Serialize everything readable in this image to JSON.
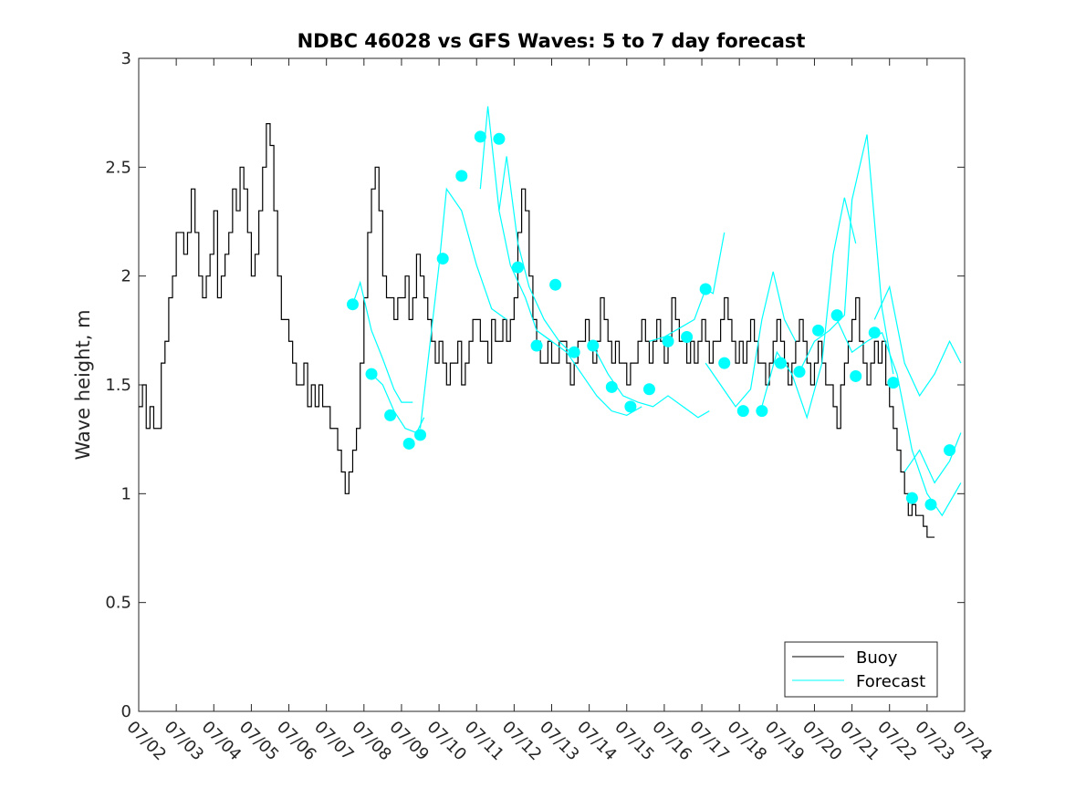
{
  "chart_data": {
    "type": "line",
    "title": "NDBC 46028 vs GFS Waves: 5 to 7 day forecast",
    "xlabel": "",
    "ylabel": "Wave height, m",
    "xlim": [
      "07/02",
      "07/24"
    ],
    "ylim": [
      0,
      3
    ],
    "x_ticks": [
      "07/02",
      "07/03",
      "07/04",
      "07/05",
      "07/06",
      "07/07",
      "07/08",
      "07/09",
      "07/10",
      "07/11",
      "07/12",
      "07/13",
      "07/14",
      "07/15",
      "07/16",
      "07/17",
      "07/18",
      "07/19",
      "07/20",
      "07/21",
      "07/22",
      "07/23",
      "07/24"
    ],
    "y_ticks": [
      0,
      0.5,
      1,
      1.5,
      2,
      2.5,
      3
    ],
    "y_tick_labels": [
      "0",
      "0.5",
      "1",
      "1.5",
      "2",
      "2.5",
      "3"
    ],
    "grid": false,
    "legend": {
      "position": "bottom-right",
      "entries": [
        "Buoy",
        "Forecast"
      ]
    },
    "colors": {
      "buoy": "#000000",
      "forecast": "#00FFFF",
      "axis": "#262626"
    },
    "series": [
      {
        "name": "Buoy",
        "x_days_since_0702": [
          0,
          0.1,
          0.2,
          0.3,
          0.4,
          0.5,
          0.6,
          0.7,
          0.8,
          0.9,
          1.0,
          1.1,
          1.2,
          1.3,
          1.4,
          1.5,
          1.6,
          1.7,
          1.8,
          1.9,
          2.0,
          2.1,
          2.2,
          2.3,
          2.4,
          2.5,
          2.6,
          2.7,
          2.8,
          2.9,
          3.0,
          3.1,
          3.2,
          3.3,
          3.4,
          3.5,
          3.6,
          3.7,
          3.8,
          3.9,
          4.0,
          4.1,
          4.2,
          4.3,
          4.4,
          4.5,
          4.6,
          4.7,
          4.8,
          4.9,
          5.0,
          5.1,
          5.2,
          5.3,
          5.4,
          5.5,
          5.6,
          5.7,
          5.8,
          5.9,
          6.0,
          6.1,
          6.2,
          6.3,
          6.4,
          6.5,
          6.6,
          6.7,
          6.8,
          6.9,
          7.0,
          7.1,
          7.2,
          7.3,
          7.4,
          7.5,
          7.6,
          7.7,
          7.8,
          7.9,
          8.0,
          8.1,
          8.2,
          8.3,
          8.4,
          8.5,
          8.6,
          8.7,
          8.8,
          8.9,
          9.0,
          9.1,
          9.2,
          9.3,
          9.4,
          9.5,
          9.6,
          9.7,
          9.8,
          9.9,
          10.0,
          10.1,
          10.2,
          10.3,
          10.4,
          10.5,
          10.6,
          10.7,
          10.8,
          10.9,
          11.0,
          11.1,
          11.2,
          11.3,
          11.4,
          11.5,
          11.6,
          11.7,
          11.8,
          11.9,
          12.0,
          12.1,
          12.2,
          12.3,
          12.4,
          12.5,
          12.6,
          12.7,
          12.8,
          12.9,
          13.0,
          13.1,
          13.2,
          13.3,
          13.4,
          13.5,
          13.6,
          13.7,
          13.8,
          13.9,
          14.0,
          14.1,
          14.2,
          14.3,
          14.4,
          14.5,
          14.6,
          14.7,
          14.8,
          14.9,
          15.0,
          15.1,
          15.2,
          15.3,
          15.4,
          15.5,
          15.6,
          15.7,
          15.8,
          15.9,
          16.0,
          16.1,
          16.2,
          16.3,
          16.4,
          16.5,
          16.6,
          16.7,
          16.8,
          16.9,
          17.0,
          17.1,
          17.2,
          17.3,
          17.4,
          17.5,
          17.6,
          17.7,
          17.8,
          17.9,
          18.0,
          18.1,
          18.2,
          18.3,
          18.4,
          18.5,
          18.6,
          18.7,
          18.8,
          18.9,
          19.0,
          19.1,
          19.2,
          19.3,
          19.4,
          19.5,
          19.6,
          19.7,
          19.8,
          19.9,
          20.0,
          20.1,
          20.2,
          20.3,
          20.4,
          20.5,
          20.6,
          20.7,
          20.8,
          20.9,
          21.0,
          21.1,
          21.2,
          21.3,
          21.4,
          21.5,
          21.6,
          21.7,
          21.8,
          21.9
        ],
        "values": [
          1.4,
          1.5,
          1.3,
          1.4,
          1.3,
          1.3,
          1.6,
          1.7,
          1.9,
          2.0,
          2.2,
          2.2,
          2.1,
          2.2,
          2.4,
          2.2,
          2.0,
          1.9,
          2.0,
          2.1,
          2.3,
          1.9,
          2.0,
          2.1,
          2.2,
          2.4,
          2.3,
          2.5,
          2.4,
          2.2,
          2.0,
          2.1,
          2.3,
          2.5,
          2.7,
          2.6,
          2.3,
          2.0,
          1.8,
          1.8,
          1.7,
          1.6,
          1.5,
          1.5,
          1.6,
          1.4,
          1.5,
          1.4,
          1.5,
          1.4,
          1.4,
          1.3,
          1.3,
          1.2,
          1.1,
          1.0,
          1.1,
          1.2,
          1.3,
          1.6,
          1.9,
          2.2,
          2.4,
          2.5,
          2.3,
          2.0,
          1.9,
          1.9,
          1.8,
          1.9,
          1.9,
          2.0,
          1.8,
          1.9,
          2.1,
          2.0,
          1.9,
          1.8,
          1.7,
          1.6,
          1.7,
          1.6,
          1.5,
          1.6,
          1.6,
          1.7,
          1.5,
          1.6,
          1.7,
          1.8,
          1.8,
          1.7,
          1.7,
          1.6,
          1.8,
          1.7,
          1.7,
          1.8,
          1.7,
          1.8,
          1.9,
          2.2,
          2.4,
          2.3,
          2.0,
          1.8,
          1.7,
          1.6,
          1.6,
          1.7,
          1.6,
          1.6,
          1.7,
          1.7,
          1.6,
          1.5,
          1.6,
          1.7,
          1.7,
          1.8,
          1.7,
          1.6,
          1.7,
          1.9,
          1.8,
          1.7,
          1.6,
          1.7,
          1.6,
          1.6,
          1.5,
          1.6,
          1.6,
          1.7,
          1.8,
          1.7,
          1.6,
          1.7,
          1.8,
          1.7,
          1.6,
          1.7,
          1.9,
          1.8,
          1.7,
          1.7,
          1.6,
          1.7,
          1.6,
          1.7,
          1.8,
          1.7,
          1.6,
          1.7,
          1.7,
          1.8,
          1.9,
          1.8,
          1.7,
          1.6,
          1.7,
          1.6,
          1.7,
          1.8,
          1.7,
          1.6,
          1.6,
          1.5,
          1.6,
          1.7,
          1.8,
          1.7,
          1.6,
          1.5,
          1.6,
          1.7,
          1.8,
          1.7,
          1.6,
          1.5,
          1.6,
          1.7,
          1.6,
          1.5,
          1.5,
          1.4,
          1.3,
          1.5,
          1.6,
          1.7,
          1.8,
          1.9,
          1.7,
          1.6,
          1.5,
          1.6,
          1.7,
          1.6,
          1.7,
          1.5,
          1.4,
          1.3,
          1.2,
          1.1,
          1.0,
          0.9,
          0.95,
          0.9,
          0.9,
          0.85,
          0.8,
          0.8
        ]
      },
      {
        "name": "Forecast",
        "marker_points": {
          "x_days_since_0702": [
            5.7,
            6.2,
            6.7,
            7.2,
            7.5,
            8.1,
            8.6,
            9.1,
            9.6,
            10.1,
            10.6,
            11.1,
            11.6,
            12.1,
            12.6,
            13.1,
            13.6,
            14.1,
            14.6,
            15.1,
            15.6,
            16.1,
            16.6,
            17.1,
            17.6,
            18.1,
            18.6,
            19.1,
            19.6,
            20.1,
            20.6,
            21.1,
            21.6
          ],
          "values": [
            1.87,
            1.55,
            1.36,
            1.23,
            1.27,
            2.08,
            2.46,
            2.64,
            2.63,
            2.04,
            1.68,
            1.96,
            1.65,
            1.68,
            1.49,
            1.4,
            1.48,
            1.7,
            1.72,
            1.94,
            1.6,
            1.38,
            1.38,
            1.6,
            1.56,
            1.75,
            1.82,
            1.54,
            1.74,
            1.51,
            0.98,
            0.95,
            1.2
          ]
        },
        "lines": [
          {
            "x_days_since_0702": [
              5.7,
              5.9,
              6.2,
              6.5,
              6.8,
              7.0,
              7.3
            ],
            "values": [
              1.87,
              1.97,
              1.75,
              1.62,
              1.48,
              1.42,
              1.42
            ]
          },
          {
            "x_days_since_0702": [
              6.2,
              6.5,
              6.8,
              7.1,
              7.4,
              7.6
            ],
            "values": [
              1.55,
              1.5,
              1.38,
              1.3,
              1.28,
              1.35
            ]
          },
          {
            "x_days_since_0702": [
              7.5,
              8.0,
              8.2,
              8.6,
              9.0,
              9.4,
              9.8
            ],
            "values": [
              1.3,
              2.05,
              2.4,
              2.3,
              2.05,
              1.85,
              1.8
            ]
          },
          {
            "x_days_since_0702": [
              9.1,
              9.3,
              9.6,
              9.9,
              10.3,
              10.6,
              11.0
            ],
            "values": [
              2.4,
              2.78,
              2.3,
              2.05,
              1.9,
              1.75,
              1.7
            ]
          },
          {
            "x_days_since_0702": [
              9.6,
              9.8,
              10.1,
              10.4,
              10.8,
              11.2,
              11.5
            ],
            "values": [
              2.3,
              2.55,
              2.15,
              1.95,
              1.8,
              1.7,
              1.65
            ]
          },
          {
            "x_days_since_0702": [
              10.6,
              11.0,
              11.4,
              11.8,
              12.2,
              12.6,
              13.0,
              13.4
            ],
            "values": [
              1.75,
              1.7,
              1.65,
              1.55,
              1.45,
              1.38,
              1.36,
              1.4
            ]
          },
          {
            "x_days_since_0702": [
              12.1,
              12.5,
              12.9,
              13.3,
              13.7,
              14.1,
              14.5,
              14.9,
              15.2
            ],
            "values": [
              1.68,
              1.55,
              1.45,
              1.42,
              1.4,
              1.45,
              1.4,
              1.35,
              1.38
            ]
          },
          {
            "x_days_since_0702": [
              13.6,
              14.0,
              14.4,
              14.8,
              15.1,
              15.3,
              15.6
            ],
            "values": [
              1.7,
              1.72,
              1.76,
              1.8,
              1.94,
              1.92,
              2.2
            ]
          },
          {
            "x_days_since_0702": [
              15.1,
              15.5,
              15.9,
              16.3,
              16.6,
              16.9,
              17.2,
              17.5
            ],
            "values": [
              1.6,
              1.5,
              1.4,
              1.48,
              1.8,
              2.02,
              1.8,
              1.7
            ]
          },
          {
            "x_days_since_0702": [
              16.6,
              17.0,
              17.4,
              17.8,
              18.2,
              18.5,
              18.8,
              19.1
            ],
            "values": [
              1.4,
              1.65,
              1.55,
              1.35,
              1.6,
              2.1,
              2.36,
              2.15
            ]
          },
          {
            "x_days_since_0702": [
              17.6,
              18.0,
              18.4,
              18.8,
              19.0,
              19.4,
              19.8,
              20.1
            ],
            "values": [
              1.56,
              1.7,
              1.75,
              1.82,
              2.35,
              2.65,
              1.85,
              1.55
            ]
          },
          {
            "x_days_since_0702": [
              18.6,
              19.0,
              19.4,
              19.8,
              20.2,
              20.6,
              21.0,
              21.4,
              21.9
            ],
            "values": [
              1.8,
              1.65,
              1.7,
              1.74,
              1.55,
              1.2,
              1.0,
              0.9,
              1.05
            ]
          },
          {
            "x_days_since_0702": [
              19.6,
              20.0,
              20.4,
              20.8,
              21.2,
              21.6,
              21.9
            ],
            "values": [
              1.8,
              1.95,
              1.6,
              1.45,
              1.55,
              1.7,
              1.6
            ]
          },
          {
            "x_days_since_0702": [
              20.4,
              20.8,
              21.2,
              21.6,
              21.9
            ],
            "values": [
              1.1,
              1.2,
              1.05,
              1.15,
              1.28
            ]
          }
        ]
      }
    ]
  }
}
